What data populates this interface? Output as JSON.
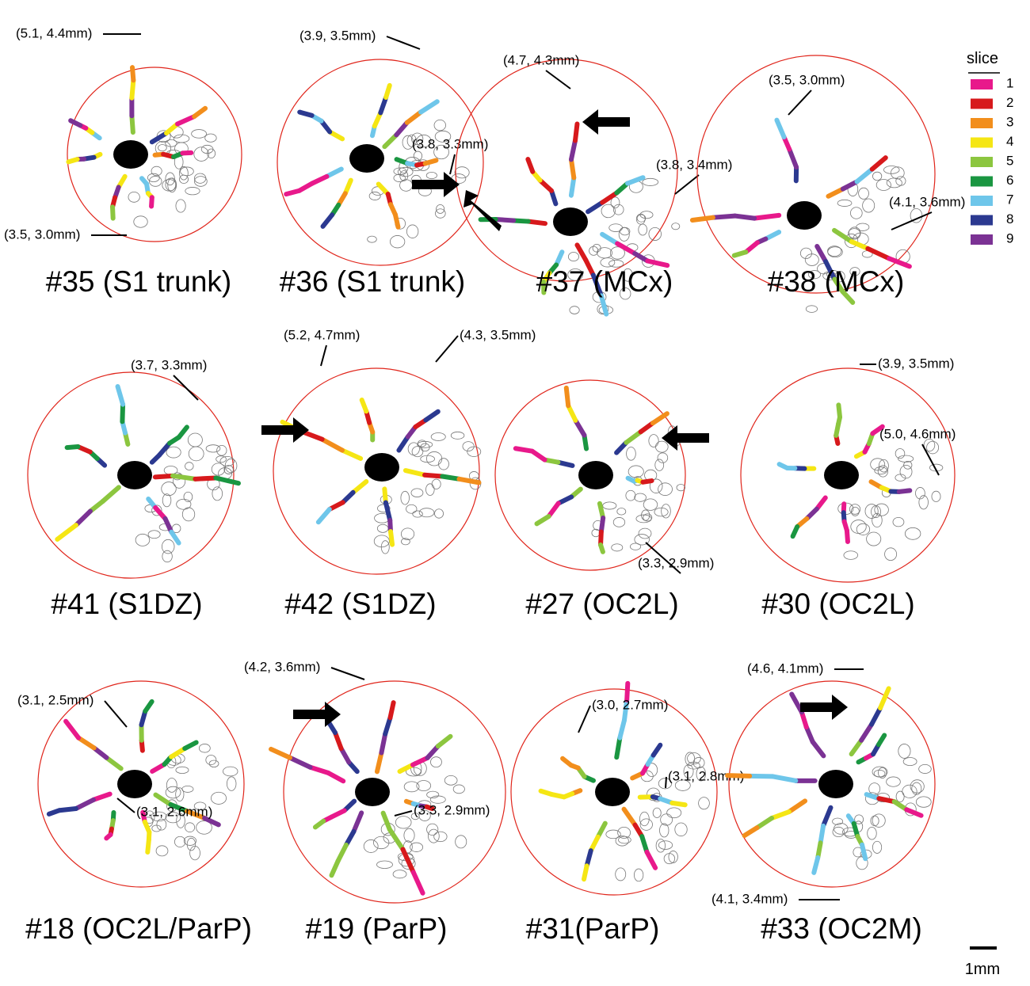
{
  "legend": {
    "title": "slice",
    "items": [
      {
        "label": "1",
        "color": "#e8198b"
      },
      {
        "label": "2",
        "color": "#d7191c"
      },
      {
        "label": "3",
        "color": "#f28e1c"
      },
      {
        "label": "4",
        "color": "#f5e614"
      },
      {
        "label": "5",
        "color": "#8cc63f"
      },
      {
        "label": "6",
        "color": "#1a9641"
      },
      {
        "label": "7",
        "color": "#6ec6ea"
      },
      {
        "label": "8",
        "color": "#2b3990"
      },
      {
        "label": "9",
        "color": "#7b3294"
      }
    ]
  },
  "scale_bar": {
    "label": "1mm"
  },
  "panels": [
    {
      "title": "#35 (S1 trunk)",
      "annotations": [
        "(5.1, 4.4mm)",
        "(3.5, 3.0mm)"
      ]
    },
    {
      "title": "#36 (S1 trunk)",
      "annotations": [
        "(3.9, 3.5mm)",
        "(3.8, 3.3mm)"
      ]
    },
    {
      "title": "#37 (MCx)",
      "annotations": [
        "(4.7, 4.3mm)",
        "(3.8, 3.4mm)"
      ]
    },
    {
      "title": "#38 (MCx)",
      "annotations": [
        "(3.5, 3.0mm)",
        "(4.1, 3.6mm)"
      ]
    },
    {
      "title": "#41 (S1DZ)",
      "annotations": [
        "(3.7, 3.3mm)"
      ]
    },
    {
      "title": "#42 (S1DZ)",
      "annotations": [
        "(5.2, 4.7mm)",
        "(4.3, 3.5mm)"
      ]
    },
    {
      "title": "#27 (OC2L)",
      "annotations": [
        "(3.3, 2.9mm)"
      ]
    },
    {
      "title": "#30 (OC2L)",
      "annotations": [
        "(3.9, 3.5mm)",
        "(5.0, 4.6mm)"
      ]
    },
    {
      "title": "#18 (OC2L/ParP)",
      "annotations": [
        "(3.1, 2.5mm)",
        "(3.1, 2.6mm)"
      ]
    },
    {
      "title": "#19 (ParP)",
      "annotations": [
        "(4.2, 3.6mm)",
        "(3.3, 2.9mm)"
      ]
    },
    {
      "title": "#31(ParP)",
      "annotations": [
        "(3.0, 2.7mm)",
        "(3.1, 2.8mm)"
      ]
    },
    {
      "title": "#33 (OC2M)",
      "annotations": [
        "(4.6, 4.1mm)",
        "(4.1, 3.4mm)"
      ]
    }
  ]
}
